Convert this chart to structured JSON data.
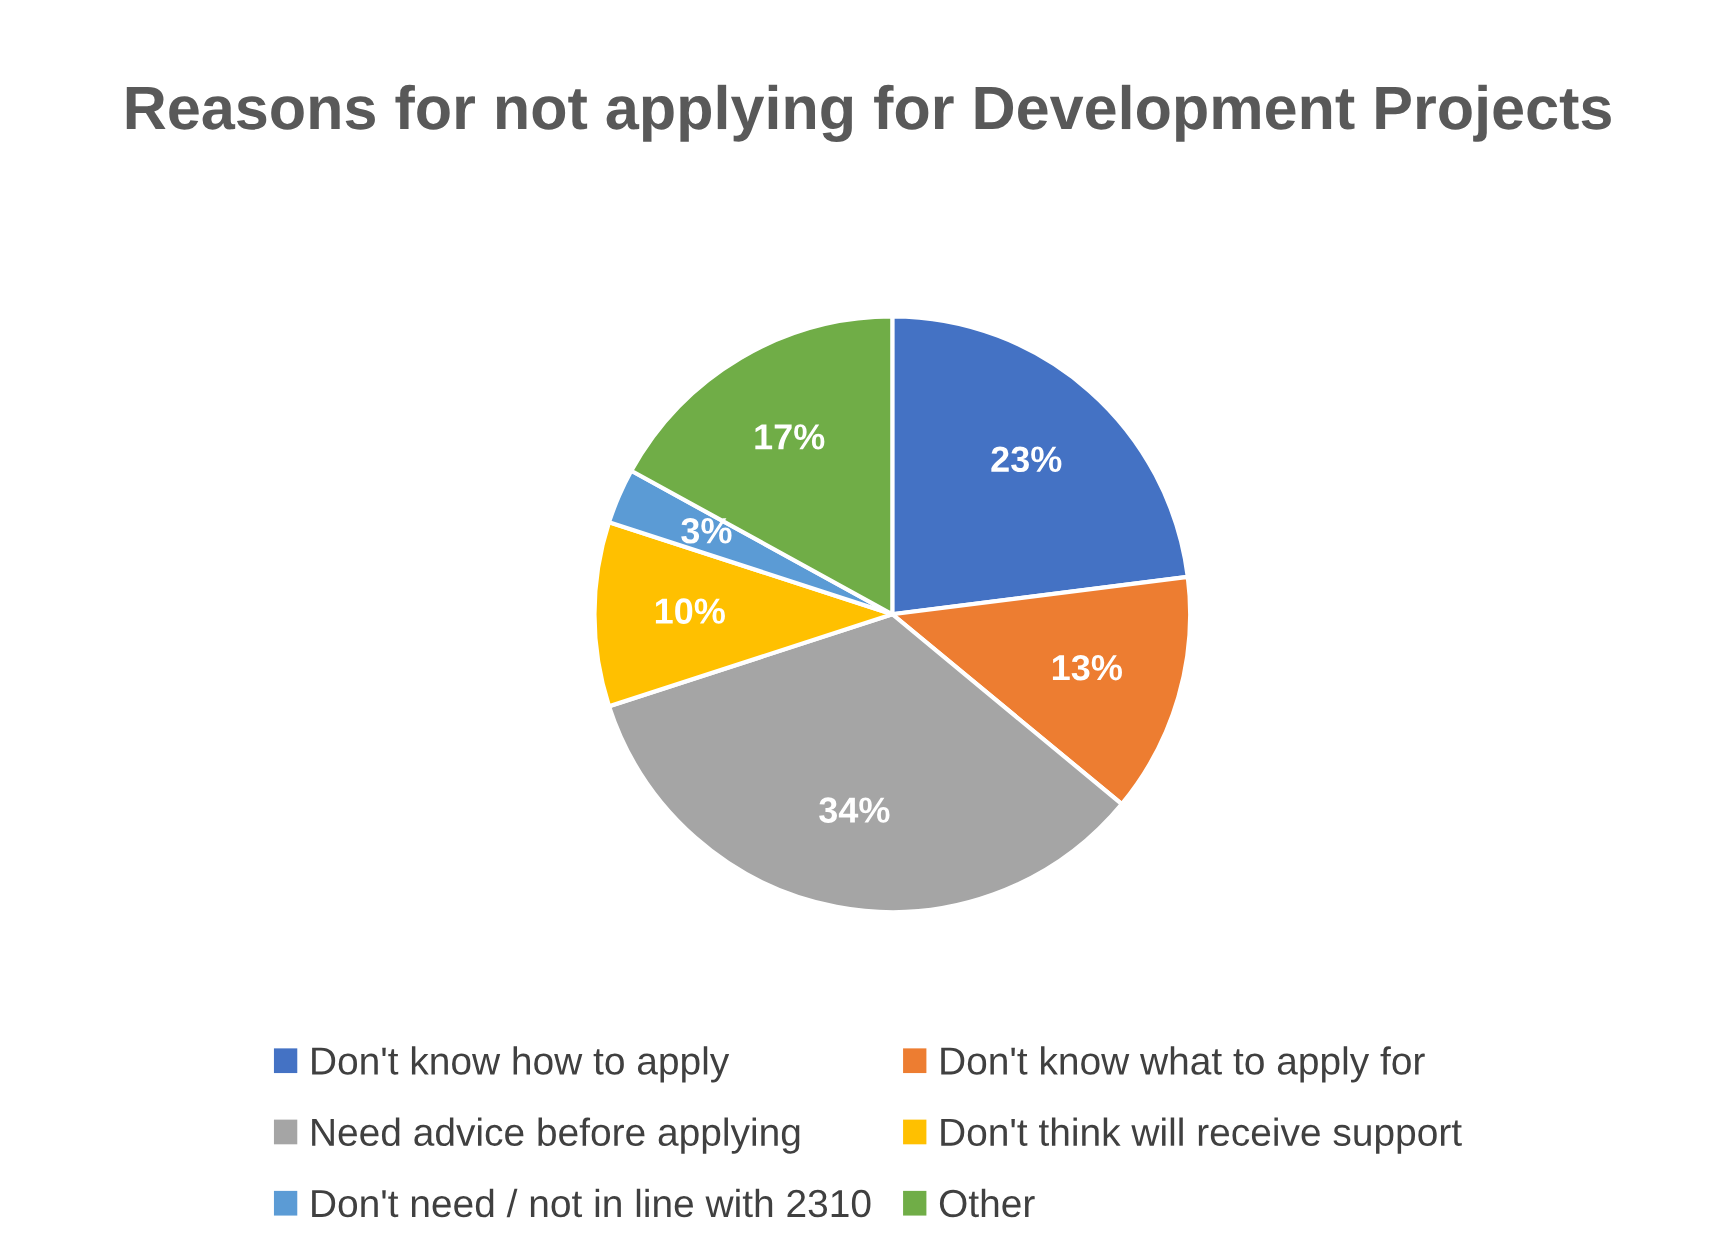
{
  "chart_data": {
    "type": "pie",
    "title": "Reasons for not applying for Development Projects",
    "categories": [
      "Don't know how to apply",
      "Don't know what to apply for",
      "Need advice before applying",
      "Don't think will receive support",
      "Don't need / not in line with 2310",
      "Other"
    ],
    "values": [
      23,
      13,
      34,
      10,
      3,
      17
    ],
    "colors": [
      "#4472c4",
      "#ed7d31",
      "#a5a5a5",
      "#ffc000",
      "#5b9bd5",
      "#70ad47"
    ],
    "value_labels": [
      "23%",
      "13%",
      "34%",
      "10%",
      "3%",
      "17%"
    ],
    "legend": "bottom"
  }
}
